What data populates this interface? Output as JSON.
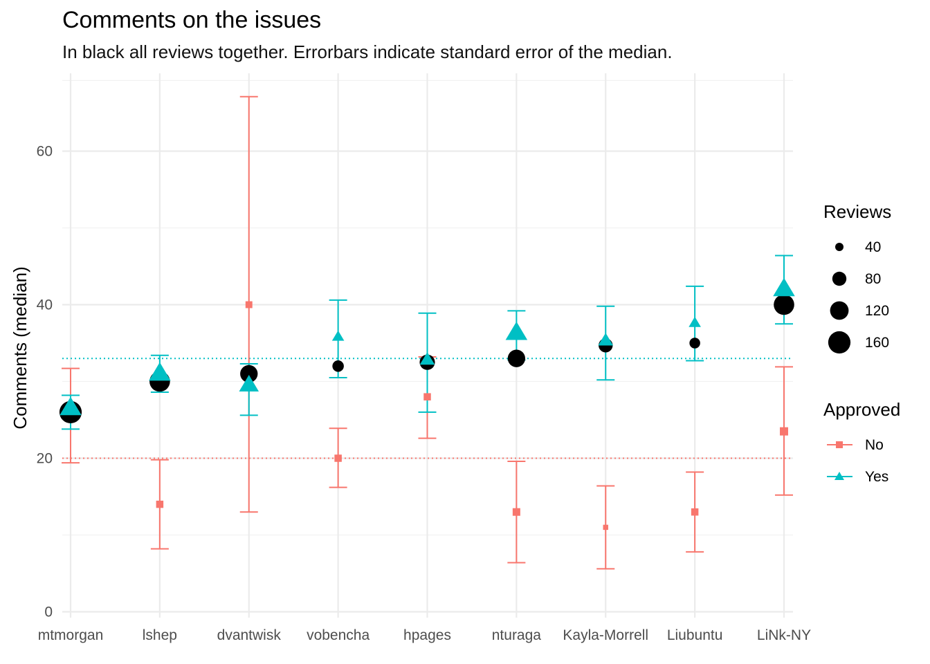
{
  "chart_data": {
    "type": "scatter",
    "title": "Comments on the issues",
    "subtitle": "In black all reviews together. Errorbars indicate standard error of the median.",
    "xlabel": "",
    "ylabel": "Comments (median)",
    "ylim": [
      -0.5,
      70
    ],
    "yticks": [
      0,
      20,
      40,
      60
    ],
    "grid": true,
    "categories": [
      "mtmorgan",
      "lshep",
      "dvantwisk",
      "vobencha",
      "hpages",
      "nturaga",
      "Kayla-Morrell",
      "Liubuntu",
      "LiNk-NY"
    ],
    "all_reviews": {
      "color": "#000000",
      "values": [
        26,
        30,
        31,
        32,
        32.5,
        33,
        34.7,
        35,
        40
      ],
      "reviews": [
        160,
        140,
        110,
        60,
        90,
        110,
        80,
        55,
        140
      ]
    },
    "series": [
      {
        "name": "No",
        "color": "#F8766D",
        "shape": "square",
        "values": [
          26,
          14,
          40,
          20,
          28,
          13,
          11,
          13,
          23.5
        ],
        "err_low": [
          19.4,
          8.2,
          13,
          16.2,
          22.6,
          6.4,
          5.6,
          7.8,
          15.2
        ],
        "err_high": [
          31.7,
          19.8,
          67.1,
          23.9,
          33.2,
          19.6,
          16.4,
          18.2,
          31.9
        ],
        "reviews": [
          5,
          25,
          20,
          25,
          25,
          30,
          5,
          25,
          40
        ],
        "reference_line": 20
      },
      {
        "name": "Yes",
        "color": "#00BFC4",
        "shape": "triangle",
        "values": [
          26.5,
          31,
          29.5,
          35.8,
          32.8,
          36.3,
          35.3,
          37.6,
          42
        ],
        "err_low": [
          23.8,
          28.6,
          25.6,
          30.5,
          26,
          32.8,
          30.2,
          32.7,
          37.5
        ],
        "err_high": [
          28.2,
          33.4,
          32.3,
          40.6,
          38.9,
          39.2,
          39.8,
          42.4,
          46.4
        ],
        "reviews": [
          140,
          140,
          120,
          60,
          80,
          140,
          80,
          60,
          140
        ],
        "reference_line": 33
      }
    ],
    "legend": {
      "position": "right",
      "size_title": "Reviews",
      "size_breaks": [
        40,
        80,
        120,
        160
      ],
      "size_labels": [
        "40",
        "80",
        "120",
        "160"
      ],
      "color_title": "Approved",
      "color_labels": [
        "No",
        "Yes"
      ]
    }
  }
}
